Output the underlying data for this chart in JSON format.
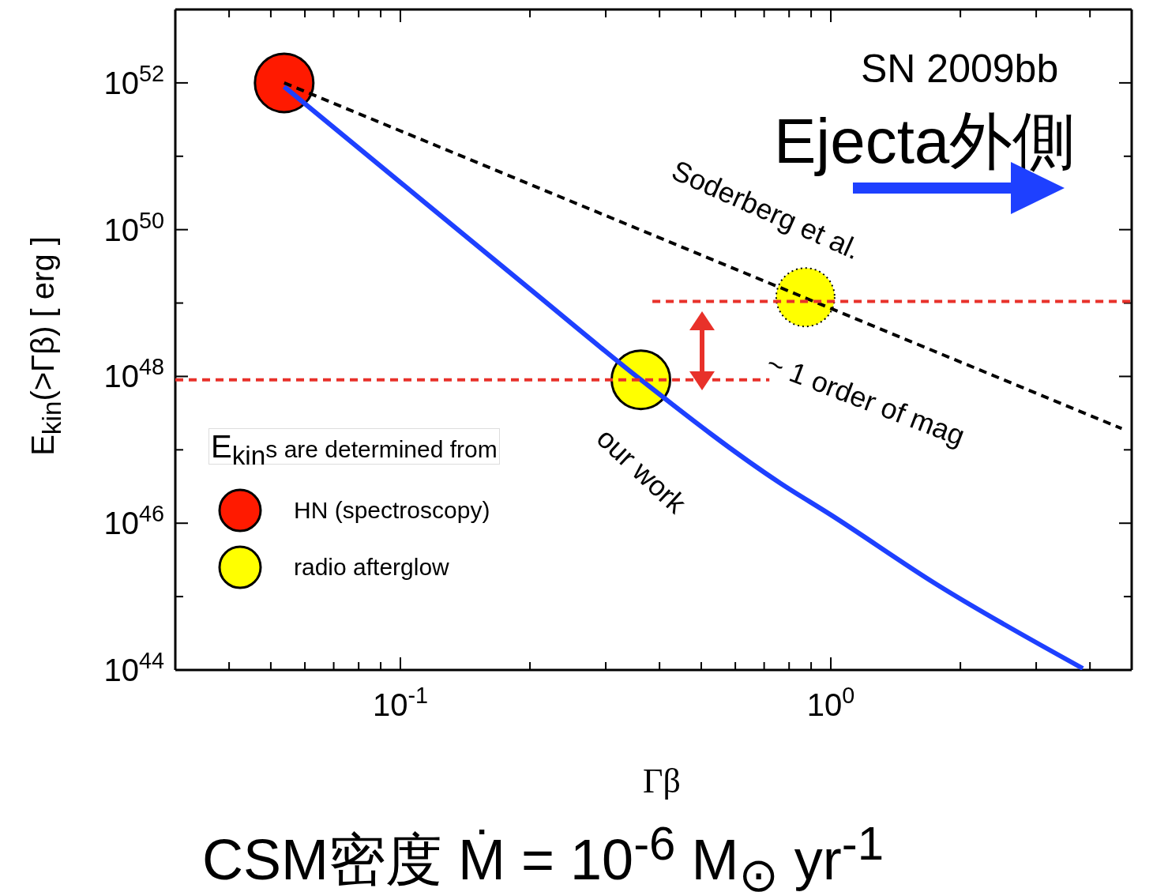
{
  "chart_data": {
    "type": "line",
    "xlabel": "Γβ",
    "ylabel": "E$_{kin}$(>Γβ) [ erg ]",
    "legend_title": "E$_{kin}$s are determined from",
    "legend": "bottom left",
    "log": "xy",
    "xlim": [
      0.03,
      5
    ],
    "ylim": [
      1e+44,
      1e+53
    ],
    "xticks": [
      {
        "value": 0.04,
        "label": null
      },
      {
        "value": 0.05,
        "label": null
      },
      {
        "value": 0.06,
        "label": null
      },
      {
        "value": 0.07,
        "label": null
      },
      {
        "value": 0.08,
        "label": null
      },
      {
        "value": 0.09,
        "label": null
      },
      {
        "value": 0.1,
        "label": "10$^{-1}$"
      },
      {
        "value": 0.2,
        "label": null
      },
      {
        "value": 0.3,
        "label": null
      },
      {
        "value": 0.4,
        "label": null
      },
      {
        "value": 0.5,
        "label": null
      },
      {
        "value": 0.6,
        "label": null
      },
      {
        "value": 0.7,
        "label": null
      },
      {
        "value": 0.8,
        "label": null
      },
      {
        "value": 0.9,
        "label": null
      },
      {
        "value": 1,
        "label": "10$^{0}$"
      },
      {
        "value": 2,
        "label": null
      },
      {
        "value": 3,
        "label": null
      },
      {
        "value": 4,
        "label": null
      }
    ],
    "yticks": [
      {
        "value": 1e+44,
        "label": "10$^{44}$"
      },
      {
        "value": 1e+45,
        "label": null
      },
      {
        "value": 1e+46,
        "label": "10$^{46}$"
      },
      {
        "value": 1e+47,
        "label": null
      },
      {
        "value": 1e+48,
        "label": "10$^{48}$"
      },
      {
        "value": 1e+49,
        "label": null
      },
      {
        "value": 1e+50,
        "label": "10$^{50}$"
      },
      {
        "value": 1e+51,
        "label": null
      },
      {
        "value": 1e+52,
        "label": "10$^{52}$"
      },
      {
        "value": 1e+53,
        "label": null
      }
    ],
    "series": [
      {
        "color": "#1e40ff",
        "line_style": "solid",
        "x": [
          0.0537,
          0.1,
          0.2,
          0.362,
          0.764,
          1,
          1.75,
          3.85
        ],
        "values": [
          8.9e+51,
          4.4e+50,
          1.55e+49,
          9e+47,
          3.5e+46,
          1.3e+46,
          1.5e+45,
          1.05e+44
        ]
      },
      {
        "color": "#000000",
        "line_style": "dashed",
        "x": [
          0.0537,
          4.74
        ],
        "values": [
          1e+52,
          1.95e+47
        ]
      },
      {
        "color": "#e8312a",
        "line_style": "dashed",
        "x": [
          0.03,
          0.72
        ],
        "values": [
          9e+47,
          9e+47
        ]
      },
      {
        "color": "#e8312a",
        "line_style": "dashed",
        "x": [
          0.385,
          5
        ],
        "values": [
          1.05e+49,
          1.05e+49
        ]
      },
      {
        "type": "scatter",
        "name": "HN (spectroscopy)",
        "color": "#ff1a00",
        "marker": "circle",
        "line_style": "solid",
        "x": [
          0.0537
        ],
        "values": [
          1e+52
        ]
      },
      {
        "type": "scatter",
        "name": "radio afterglow",
        "color": "#ffff00",
        "marker": "circle",
        "line_style": "solid",
        "x": [
          0.362
        ],
        "values": [
          9e+47
        ]
      },
      {
        "type": "scatter",
        "color": "#ffff00",
        "marker": "circle",
        "line_style": "dotted",
        "x": [
          0.873
        ],
        "values": [
          1.2e+49
        ]
      }
    ],
    "annotations": [
      "SN 2009bb",
      "Ejecta外側",
      "Soderberg et al.",
      "~ 1 order of mag",
      "our work",
      "CSM密度 Ṁ = 10$^{-6}$ M$_{⊙}$ yr$^{-1}$"
    ]
  }
}
